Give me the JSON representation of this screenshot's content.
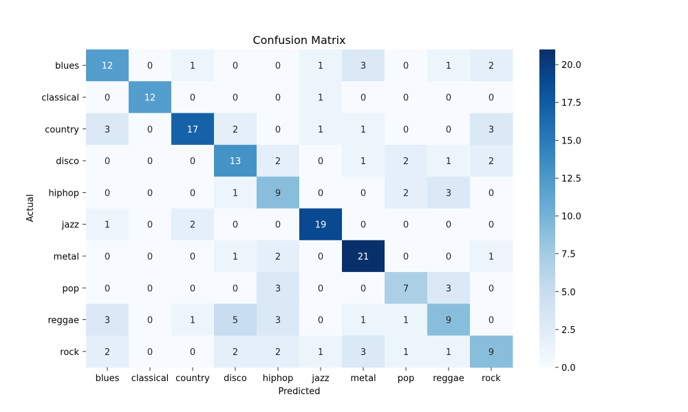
{
  "chart_data": {
    "type": "heatmap",
    "title": "Confusion Matrix",
    "xlabel": "Predicted",
    "ylabel": "Actual",
    "x_categories": [
      "blues",
      "classical",
      "country",
      "disco",
      "hiphop",
      "jazz",
      "metal",
      "pop",
      "reggae",
      "rock"
    ],
    "y_categories": [
      "blues",
      "classical",
      "country",
      "disco",
      "hiphop",
      "jazz",
      "metal",
      "pop",
      "reggae",
      "rock"
    ],
    "values": [
      [
        12,
        0,
        1,
        0,
        0,
        1,
        3,
        0,
        1,
        2
      ],
      [
        0,
        12,
        0,
        0,
        0,
        1,
        0,
        0,
        0,
        0
      ],
      [
        3,
        0,
        17,
        2,
        0,
        1,
        1,
        0,
        0,
        3
      ],
      [
        0,
        0,
        0,
        13,
        2,
        0,
        1,
        2,
        1,
        2
      ],
      [
        0,
        0,
        0,
        1,
        9,
        0,
        0,
        2,
        3,
        0
      ],
      [
        1,
        0,
        2,
        0,
        0,
        19,
        0,
        0,
        0,
        0
      ],
      [
        0,
        0,
        0,
        1,
        2,
        0,
        21,
        0,
        0,
        1
      ],
      [
        0,
        0,
        0,
        0,
        3,
        0,
        0,
        7,
        3,
        0
      ],
      [
        3,
        0,
        1,
        5,
        3,
        0,
        1,
        1,
        9,
        0
      ],
      [
        2,
        0,
        0,
        2,
        2,
        1,
        3,
        1,
        1,
        9
      ]
    ],
    "colormap": "Blues",
    "colorbar": {
      "min": 0,
      "max": 21,
      "ticks": [
        0,
        2.5,
        5,
        7.5,
        10,
        12.5,
        15,
        17.5,
        20
      ],
      "tick_labels": [
        "0.0",
        "2.5",
        "5.0",
        "7.5",
        "10.0",
        "12.5",
        "15.0",
        "17.5",
        "20.0"
      ]
    },
    "annotations": true,
    "grid": false
  }
}
